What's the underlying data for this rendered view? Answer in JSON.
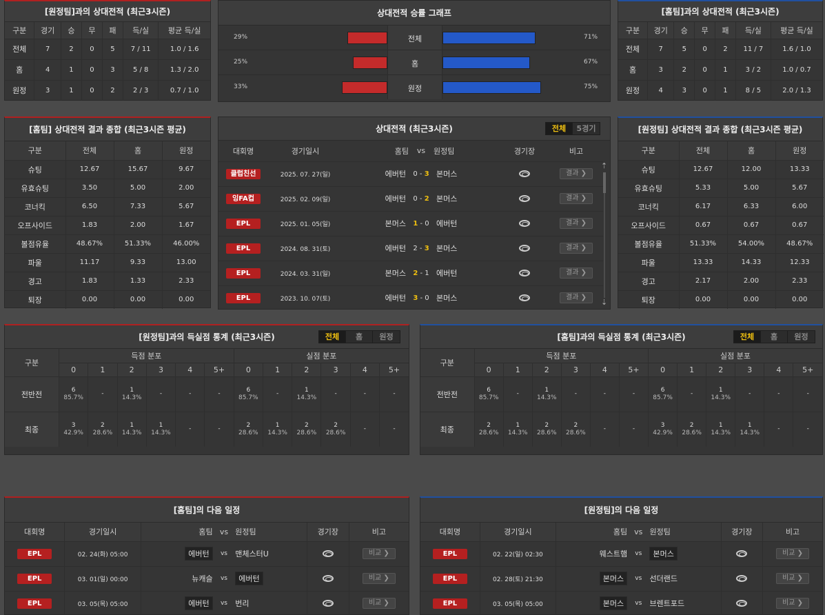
{
  "away_h2h": {
    "title": "[원정팀]과의 상대전적 (최근3시즌)",
    "headers": [
      "구분",
      "경기",
      "승",
      "무",
      "패",
      "득/실",
      "평균 득/실"
    ],
    "rows": [
      [
        "전체",
        "7",
        "2",
        "0",
        "5",
        "7 / 11",
        "1.0 / 1.6"
      ],
      [
        "홈",
        "4",
        "1",
        "0",
        "3",
        "5 / 8",
        "1.3 / 2.0"
      ],
      [
        "원정",
        "3",
        "1",
        "0",
        "2",
        "2 / 3",
        "0.7 / 1.0"
      ]
    ]
  },
  "win_graph": {
    "title": "상대전적 승률 그래프",
    "rows": [
      {
        "label": "전체",
        "left": "29%",
        "right": "71%",
        "left_val": 29,
        "right_val": 71
      },
      {
        "label": "홈",
        "left": "25%",
        "right": "67%",
        "left_val": 25,
        "right_val": 67
      },
      {
        "label": "원정",
        "left": "33%",
        "right": "75%",
        "left_val": 33,
        "right_val": 75
      }
    ],
    "colors": {
      "left": "#c42b2b",
      "right": "#2459c8"
    }
  },
  "home_h2h": {
    "title": "[홈팀]과의 상대전적 (최근3시즌)",
    "headers": [
      "구분",
      "경기",
      "승",
      "무",
      "패",
      "득/실",
      "평균 득/실"
    ],
    "rows": [
      [
        "전체",
        "7",
        "5",
        "0",
        "2",
        "11 / 7",
        "1.6 / 1.0"
      ],
      [
        "홈",
        "3",
        "2",
        "0",
        "1",
        "3 / 2",
        "1.0 / 0.7"
      ],
      [
        "원정",
        "4",
        "3",
        "0",
        "1",
        "8 / 5",
        "2.0 / 1.3"
      ]
    ]
  },
  "home_summary": {
    "title": "[홈팀] 상대전적 결과 종합 (최근3시즌 평균)",
    "headers": [
      "구분",
      "전체",
      "홈",
      "원정"
    ],
    "rows": [
      [
        "슈팅",
        "12.67",
        "15.67",
        "9.67"
      ],
      [
        "유효슈팅",
        "3.50",
        "5.00",
        "2.00"
      ],
      [
        "코너킥",
        "6.50",
        "7.33",
        "5.67"
      ],
      [
        "오프사이드",
        "1.83",
        "2.00",
        "1.67"
      ],
      [
        "볼점유율",
        "48.67%",
        "51.33%",
        "46.00%"
      ],
      [
        "파울",
        "11.17",
        "9.33",
        "13.00"
      ],
      [
        "경고",
        "1.83",
        "1.33",
        "2.33"
      ],
      [
        "퇴장",
        "0.00",
        "0.00",
        "0.00"
      ]
    ]
  },
  "matches": {
    "title": "상대전적 (최근3시즌)",
    "tabs": [
      "전체",
      "5경기"
    ],
    "headers": {
      "league": "대회명",
      "date": "경기일시",
      "home": "홈팀",
      "vs": "vs",
      "away": "원정팀",
      "venue": "경기장",
      "note": "비고"
    },
    "result_label": "결과 ❯",
    "rows": [
      {
        "league": "클럽친선",
        "date": "2025. 07. 27(일)",
        "home": "에버턴",
        "hs": "0",
        "as": "3",
        "away": "본머스",
        "win": "away"
      },
      {
        "league": "잉FA컵",
        "date": "2025. 02. 09(일)",
        "home": "에버턴",
        "hs": "0",
        "as": "2",
        "away": "본머스",
        "win": "away"
      },
      {
        "league": "EPL",
        "date": "2025. 01. 05(일)",
        "home": "본머스",
        "hs": "1",
        "as": "0",
        "away": "에버턴",
        "win": "home"
      },
      {
        "league": "EPL",
        "date": "2024. 08. 31(토)",
        "home": "에버턴",
        "hs": "2",
        "as": "3",
        "away": "본머스",
        "win": "away"
      },
      {
        "league": "EPL",
        "date": "2024. 03. 31(일)",
        "home": "본머스",
        "hs": "2",
        "as": "1",
        "away": "에버턴",
        "win": "home"
      },
      {
        "league": "EPL",
        "date": "2023. 10. 07(토)",
        "home": "에버턴",
        "hs": "3",
        "as": "0",
        "away": "본머스",
        "win": "home"
      }
    ]
  },
  "away_summary": {
    "title": "[원정팀] 상대전적 결과 종합 (최근3시즌 평균)",
    "headers": [
      "구분",
      "전체",
      "홈",
      "원정"
    ],
    "rows": [
      [
        "슈팅",
        "12.67",
        "12.00",
        "13.33"
      ],
      [
        "유효슈팅",
        "5.33",
        "5.00",
        "5.67"
      ],
      [
        "코너킥",
        "6.17",
        "6.33",
        "6.00"
      ],
      [
        "오프사이드",
        "0.67",
        "0.67",
        "0.67"
      ],
      [
        "볼점유율",
        "51.33%",
        "54.00%",
        "48.67%"
      ],
      [
        "파울",
        "13.33",
        "14.33",
        "12.33"
      ],
      [
        "경고",
        "2.17",
        "2.00",
        "2.33"
      ],
      [
        "퇴장",
        "0.00",
        "0.00",
        "0.00"
      ]
    ]
  },
  "goals_left": {
    "title": "[원정팀]과의 득실점 통계 (최근3시즌)",
    "tabs": [
      "전체",
      "홈",
      "원정"
    ],
    "label_col": "구분",
    "group1": "득점 분포",
    "group2": "실점 분포",
    "cols": [
      "0",
      "1",
      "2",
      "3",
      "4",
      "5+"
    ],
    "rows": [
      {
        "label": "전반전",
        "scored": [
          [
            "6",
            "85.7%"
          ],
          [
            "-",
            ""
          ],
          [
            "1",
            "14.3%"
          ],
          [
            "-",
            ""
          ],
          [
            "-",
            ""
          ],
          [
            "-",
            ""
          ]
        ],
        "conceded": [
          [
            "6",
            "85.7%"
          ],
          [
            "-",
            ""
          ],
          [
            "1",
            "14.3%"
          ],
          [
            "-",
            ""
          ],
          [
            "-",
            ""
          ],
          [
            "-",
            ""
          ]
        ]
      },
      {
        "label": "최종",
        "scored": [
          [
            "3",
            "42.9%"
          ],
          [
            "2",
            "28.6%"
          ],
          [
            "1",
            "14.3%"
          ],
          [
            "1",
            "14.3%"
          ],
          [
            "-",
            ""
          ],
          [
            "-",
            ""
          ]
        ],
        "conceded": [
          [
            "2",
            "28.6%"
          ],
          [
            "1",
            "14.3%"
          ],
          [
            "2",
            "28.6%"
          ],
          [
            "2",
            "28.6%"
          ],
          [
            "-",
            ""
          ],
          [
            "-",
            ""
          ]
        ]
      }
    ]
  },
  "goals_right": {
    "title": "[홈팀]과의 득실점 통계 (최근3시즌)",
    "tabs": [
      "전체",
      "홈",
      "원정"
    ],
    "label_col": "구분",
    "group1": "득점 분포",
    "group2": "실점 분포",
    "cols": [
      "0",
      "1",
      "2",
      "3",
      "4",
      "5+"
    ],
    "rows": [
      {
        "label": "전반전",
        "scored": [
          [
            "6",
            "85.7%"
          ],
          [
            "-",
            ""
          ],
          [
            "1",
            "14.3%"
          ],
          [
            "-",
            ""
          ],
          [
            "-",
            ""
          ],
          [
            "-",
            ""
          ]
        ],
        "conceded": [
          [
            "6",
            "85.7%"
          ],
          [
            "-",
            ""
          ],
          [
            "1",
            "14.3%"
          ],
          [
            "-",
            ""
          ],
          [
            "-",
            ""
          ],
          [
            "-",
            ""
          ]
        ]
      },
      {
        "label": "최종",
        "scored": [
          [
            "2",
            "28.6%"
          ],
          [
            "1",
            "14.3%"
          ],
          [
            "2",
            "28.6%"
          ],
          [
            "2",
            "28.6%"
          ],
          [
            "-",
            ""
          ],
          [
            "-",
            ""
          ]
        ],
        "conceded": [
          [
            "3",
            "42.9%"
          ],
          [
            "2",
            "28.6%"
          ],
          [
            "1",
            "14.3%"
          ],
          [
            "1",
            "14.3%"
          ],
          [
            "-",
            ""
          ],
          [
            "-",
            ""
          ]
        ]
      }
    ]
  },
  "next_home": {
    "title": "[홈팀]의 다음 일정",
    "headers": {
      "league": "대회명",
      "date": "경기일시",
      "home": "홈팀",
      "vs": "vs",
      "away": "원정팀",
      "venue": "경기장",
      "note": "비고"
    },
    "compare_label": "비교 ❯",
    "rows": [
      {
        "league": "EPL",
        "date": "02. 24(화) 05:00",
        "home": "에버턴",
        "away": "맨체스터U",
        "boxed": "home"
      },
      {
        "league": "EPL",
        "date": "03. 01(일) 00:00",
        "home": "뉴캐슬",
        "away": "에버턴",
        "boxed": "away"
      },
      {
        "league": "EPL",
        "date": "03. 05(목) 05:00",
        "home": "에버턴",
        "away": "번리",
        "boxed": "home"
      }
    ]
  },
  "next_away": {
    "title": "[원정팀]의 다음 일정",
    "headers": {
      "league": "대회명",
      "date": "경기일시",
      "home": "홈팀",
      "vs": "vs",
      "away": "원정팀",
      "venue": "경기장",
      "note": "비고"
    },
    "compare_label": "비교 ❯",
    "rows": [
      {
        "league": "EPL",
        "date": "02. 22(일) 02:30",
        "home": "웨스트햄",
        "away": "본머스",
        "boxed": "away"
      },
      {
        "league": "EPL",
        "date": "02. 28(토) 21:30",
        "home": "본머스",
        "away": "선더랜드",
        "boxed": "home"
      },
      {
        "league": "EPL",
        "date": "03. 05(목) 05:00",
        "home": "본머스",
        "away": "브렌트포드",
        "boxed": "home"
      }
    ]
  }
}
